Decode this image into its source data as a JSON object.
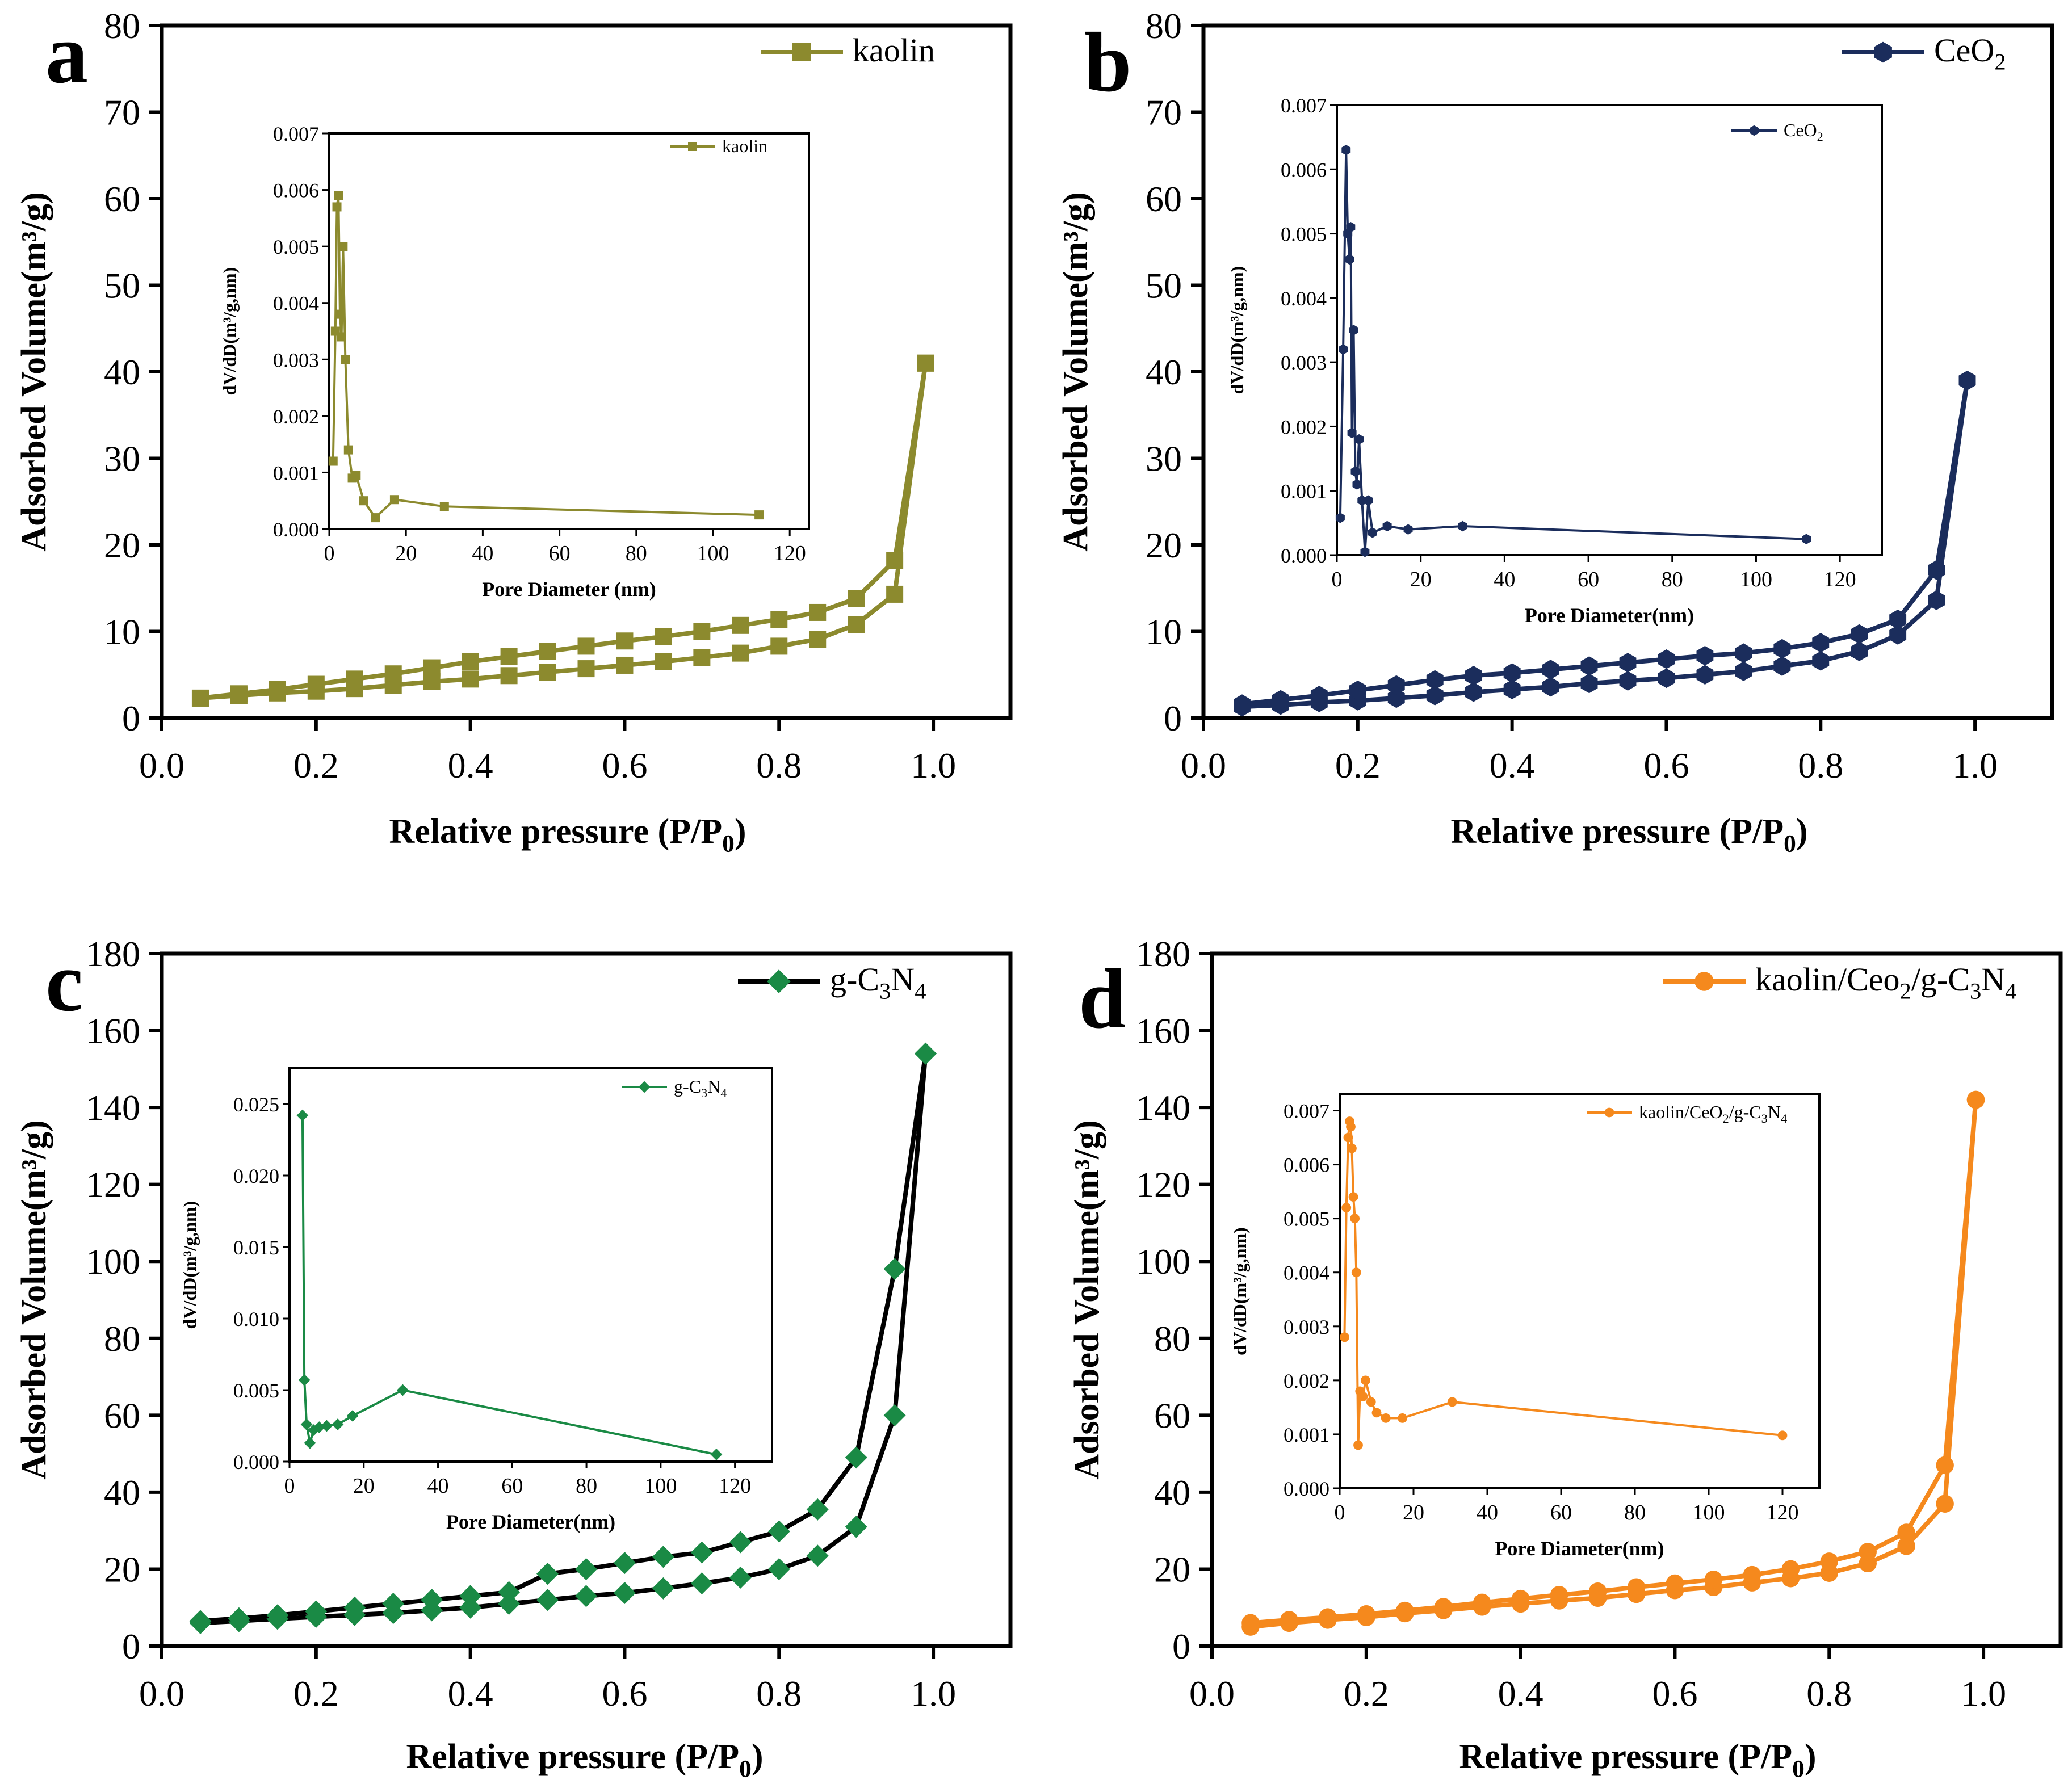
{
  "chart_data": [
    {
      "panel_label": "a",
      "type": "line",
      "color": "#8c8a2e",
      "marker": "square",
      "legend": "kaolin",
      "xlabel": "Relative pressure (P/P0)",
      "ylabel": "Adsorbed Volume(m³/g)",
      "xlim": [
        0.0,
        1.1
      ],
      "ylim": [
        0,
        80
      ],
      "xticks": [
        "0.0",
        "0.2",
        "0.4",
        "0.6",
        "0.8",
        "1.0"
      ],
      "yticks": [
        "0",
        "10",
        "20",
        "30",
        "40",
        "50",
        "60",
        "70",
        "80"
      ],
      "series": [
        {
          "name": "adsorption",
          "x": [
            0.05,
            0.1,
            0.15,
            0.2,
            0.25,
            0.3,
            0.35,
            0.4,
            0.45,
            0.5,
            0.55,
            0.6,
            0.65,
            0.7,
            0.75,
            0.8,
            0.85,
            0.9,
            0.95,
            0.99
          ],
          "y": [
            2.3,
            2.6,
            2.9,
            3.1,
            3.4,
            3.8,
            4.2,
            4.5,
            4.9,
            5.3,
            5.7,
            6.1,
            6.5,
            7.0,
            7.5,
            8.3,
            9.1,
            10.8,
            14.3,
            41
          ]
        },
        {
          "name": "desorption",
          "x": [
            0.99,
            0.95,
            0.9,
            0.85,
            0.8,
            0.75,
            0.7,
            0.65,
            0.6,
            0.55,
            0.5,
            0.45,
            0.4,
            0.35,
            0.3,
            0.25,
            0.2,
            0.15,
            0.1,
            0.05
          ],
          "y": [
            41,
            18.2,
            13.8,
            12.2,
            11.4,
            10.7,
            10.0,
            9.4,
            8.9,
            8.3,
            7.7,
            7.1,
            6.5,
            5.8,
            5.1,
            4.5,
            3.9,
            3.3,
            2.8,
            2.3
          ]
        }
      ],
      "inset": {
        "legend": "kaolin",
        "xlabel": "Pore Diameter (nm)",
        "ylabel": "dV/dD(m³/g,nm)",
        "xlim": [
          0,
          125
        ],
        "ylim": [
          0,
          0.007
        ],
        "xticks": [
          "0",
          "20",
          "40",
          "60",
          "80",
          "100",
          "120"
        ],
        "yticks": [
          "0.000",
          "0.001",
          "0.002",
          "0.003",
          "0.004",
          "0.005",
          "0.006",
          "0.007"
        ],
        "x": [
          1.0,
          1.6,
          2.0,
          2.4,
          2.8,
          3.2,
          3.6,
          4.2,
          5.0,
          6.0,
          7.0,
          9.0,
          12.0,
          17.0,
          30.0,
          112.0
        ],
        "y": [
          0.0012,
          0.0035,
          0.0057,
          0.0059,
          0.0038,
          0.0034,
          0.005,
          0.003,
          0.0014,
          0.0009,
          0.00095,
          0.0005,
          0.0002,
          0.00052,
          0.0004,
          0.00025
        ]
      }
    },
    {
      "panel_label": "b",
      "type": "line",
      "color": "#1b2d5c",
      "marker": "hexagon",
      "legend": "CeO2",
      "xlabel": "Relative pressure (P/P0)",
      "ylabel": "Adsorbed Volume(m³/g)",
      "xlim": [
        0.0,
        1.1
      ],
      "ylim": [
        0,
        80
      ],
      "xticks": [
        "0.0",
        "0.2",
        "0.4",
        "0.6",
        "0.8",
        "1.0"
      ],
      "yticks": [
        "0",
        "10",
        "20",
        "30",
        "40",
        "50",
        "60",
        "70",
        "80"
      ],
      "series": [
        {
          "name": "adsorption",
          "x": [
            0.05,
            0.1,
            0.15,
            0.2,
            0.25,
            0.3,
            0.35,
            0.4,
            0.45,
            0.5,
            0.55,
            0.6,
            0.65,
            0.7,
            0.75,
            0.8,
            0.85,
            0.9,
            0.95,
            0.99
          ],
          "y": [
            1.3,
            1.5,
            1.8,
            2.0,
            2.3,
            2.6,
            3.0,
            3.3,
            3.6,
            4.0,
            4.3,
            4.6,
            5.0,
            5.4,
            6.0,
            6.6,
            7.7,
            9.6,
            13.6,
            39
          ]
        },
        {
          "name": "desorption",
          "x": [
            0.99,
            0.95,
            0.9,
            0.85,
            0.8,
            0.75,
            0.7,
            0.65,
            0.6,
            0.55,
            0.5,
            0.45,
            0.4,
            0.35,
            0.3,
            0.25,
            0.2,
            0.15,
            0.1,
            0.05
          ],
          "y": [
            39,
            17.1,
            11.4,
            9.7,
            8.7,
            8.0,
            7.5,
            7.2,
            6.8,
            6.4,
            6.0,
            5.6,
            5.2,
            4.9,
            4.4,
            3.8,
            3.2,
            2.6,
            2.1,
            1.6
          ]
        }
      ],
      "inset": {
        "legend": "CeO2",
        "xlabel": "Pore Diameter(nm)",
        "ylabel": "dV/dD(m³/g,nm)",
        "xlim": [
          0,
          130
        ],
        "ylim": [
          0,
          0.007
        ],
        "xticks": [
          "0",
          "20",
          "40",
          "60",
          "80",
          "100",
          "120"
        ],
        "yticks": [
          "0.000",
          "0.001",
          "0.002",
          "0.003",
          "0.004",
          "0.005",
          "0.006",
          "0.007"
        ],
        "x": [
          0.8,
          1.5,
          2.2,
          2.6,
          3.0,
          3.3,
          3.6,
          4.0,
          4.4,
          4.8,
          5.3,
          6.0,
          6.7,
          7.5,
          8.5,
          12.0,
          17.0,
          30.0,
          112.0
        ],
        "y": [
          0.00058,
          0.0032,
          0.0063,
          0.005,
          0.0046,
          0.0051,
          0.0019,
          0.0035,
          0.0013,
          0.0011,
          0.0018,
          0.00085,
          5e-05,
          0.00085,
          0.00035,
          0.00045,
          0.0004,
          0.00045,
          0.00025
        ]
      }
    },
    {
      "panel_label": "c",
      "type": "line",
      "color": "#1a8a45",
      "marker": "diamond",
      "legend": "g-C3N4",
      "xlabel": "Relative pressure (P/P0)",
      "ylabel": "Adsorbed Volume(m³/g)",
      "xlim": [
        0.0,
        1.1
      ],
      "ylim": [
        0,
        180
      ],
      "xticks": [
        "0.0",
        "0.2",
        "0.4",
        "0.6",
        "0.8",
        "1.0"
      ],
      "yticks": [
        "0",
        "20",
        "40",
        "60",
        "80",
        "100",
        "120",
        "140",
        "160",
        "180"
      ],
      "series": [
        {
          "name": "adsorption",
          "x": [
            0.05,
            0.1,
            0.15,
            0.2,
            0.25,
            0.3,
            0.35,
            0.4,
            0.45,
            0.5,
            0.55,
            0.6,
            0.65,
            0.7,
            0.75,
            0.8,
            0.85,
            0.9,
            0.95,
            0.99
          ],
          "y": [
            6,
            6.5,
            7.1,
            7.6,
            8.1,
            8.6,
            9.3,
            10.0,
            11.0,
            12.0,
            13.0,
            13.8,
            15.0,
            16.3,
            17.8,
            20.0,
            23.5,
            31.0,
            60.0,
            154
          ]
        },
        {
          "name": "desorption",
          "x": [
            0.99,
            0.95,
            0.9,
            0.85,
            0.8,
            0.75,
            0.7,
            0.65,
            0.6,
            0.55,
            0.5,
            0.45,
            0.4,
            0.35,
            0.3,
            0.25,
            0.2,
            0.15,
            0.1,
            0.05
          ],
          "y": [
            154,
            98,
            49,
            35.5,
            29.8,
            27.0,
            24.3,
            23.2,
            21.6,
            20.0,
            18.8,
            14.0,
            13.0,
            12.0,
            11.0,
            10.0,
            9.0,
            8.0,
            7.2,
            6.5
          ]
        }
      ],
      "inset": {
        "legend": "g-C3N4",
        "xlabel": "Pore Diameter(nm)",
        "ylabel": "dV/dD(m³/g,nm)",
        "xlim": [
          0,
          130
        ],
        "ylim": [
          0,
          0.0275
        ],
        "xticks": [
          "0",
          "20",
          "40",
          "60",
          "80",
          "100",
          "120"
        ],
        "yticks": [
          "0.000",
          "0.005",
          "0.010",
          "0.015",
          "0.020",
          "0.025"
        ],
        "x": [
          3.5,
          4.0,
          4.6,
          5.5,
          6.5,
          8.0,
          10.0,
          13.0,
          17.0,
          30.5,
          115.0
        ],
        "y": [
          0.0242,
          0.0057,
          0.0026,
          0.0013,
          0.0022,
          0.0024,
          0.0025,
          0.0026,
          0.0032,
          0.005,
          0.0005
        ]
      }
    },
    {
      "panel_label": "d",
      "type": "line",
      "color": "#f5891d",
      "marker": "circle",
      "legend": "kaolin/Ceo2/g-C3N4",
      "xlabel": "Relative pressure (P/P0)",
      "ylabel": "Adsorbed Volume(m³/g)",
      "xlim": [
        0.0,
        1.1
      ],
      "ylim": [
        0,
        180
      ],
      "xticks": [
        "0.0",
        "0.2",
        "0.4",
        "0.6",
        "0.8",
        "1.0"
      ],
      "yticks": [
        "0",
        "20",
        "40",
        "60",
        "80",
        "100",
        "120",
        "140",
        "160",
        "180"
      ],
      "series": [
        {
          "name": "adsorption",
          "x": [
            0.05,
            0.1,
            0.15,
            0.2,
            0.25,
            0.3,
            0.35,
            0.4,
            0.45,
            0.5,
            0.55,
            0.6,
            0.65,
            0.7,
            0.75,
            0.8,
            0.85,
            0.9,
            0.95,
            0.99
          ],
          "y": [
            5,
            6,
            6.8,
            7.5,
            8.5,
            9.3,
            10.2,
            11.0,
            11.8,
            12.5,
            13.5,
            14.5,
            15.3,
            16.5,
            17.6,
            19.0,
            21.5,
            26.0,
            37.0,
            142
          ]
        },
        {
          "name": "desorption",
          "x": [
            0.99,
            0.95,
            0.9,
            0.85,
            0.8,
            0.75,
            0.7,
            0.65,
            0.6,
            0.55,
            0.5,
            0.45,
            0.4,
            0.35,
            0.3,
            0.25,
            0.2,
            0.15,
            0.1,
            0.05
          ],
          "y": [
            142,
            47,
            29.5,
            24.5,
            22.0,
            20.0,
            18.5,
            17.3,
            16.3,
            15.3,
            14.2,
            13.3,
            12.3,
            11.3,
            10.2,
            9.2,
            8.3,
            7.5,
            6.8,
            6.0
          ]
        }
      ],
      "inset": {
        "legend": "kaolin/CeO2/g-C3N4",
        "xlabel": "Pore Diameter(nm)",
        "ylabel": "dV/dD(m³/g,nm)",
        "xlim": [
          0,
          130
        ],
        "ylim": [
          0,
          0.0073
        ],
        "xticks": [
          "0",
          "20",
          "40",
          "60",
          "80",
          "100",
          "120"
        ],
        "yticks": [
          "0.000",
          "0.001",
          "0.002",
          "0.003",
          "0.004",
          "0.005",
          "0.006",
          "0.007"
        ],
        "x": [
          1.3,
          1.8,
          2.3,
          2.7,
          3.0,
          3.3,
          3.7,
          4.1,
          4.5,
          5.0,
          5.5,
          6.3,
          7.0,
          8.5,
          10.0,
          12.5,
          17.0,
          30.5,
          120.0
        ],
        "y": [
          0.0028,
          0.0052,
          0.0065,
          0.0068,
          0.0067,
          0.0063,
          0.0054,
          0.005,
          0.004,
          0.0008,
          0.0018,
          0.0017,
          0.002,
          0.0016,
          0.0014,
          0.0013,
          0.0013,
          0.0016,
          0.00098
        ]
      }
    }
  ]
}
